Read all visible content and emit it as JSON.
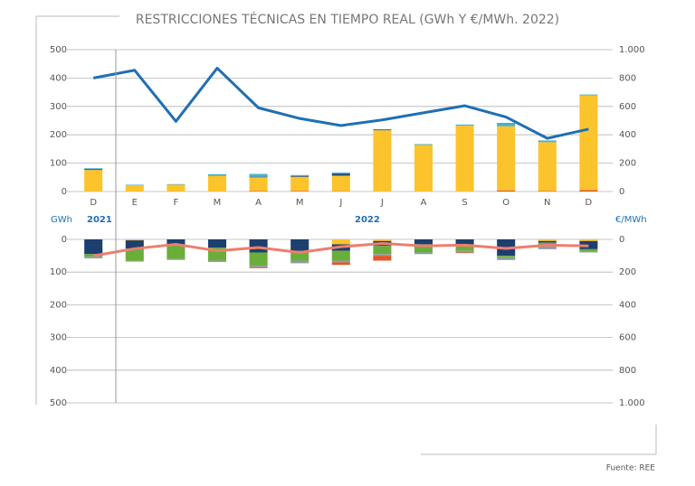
{
  "chart_data": [
    {
      "type": "bar",
      "title": "RESTRICCIONES TÉCNICAS EN TIEMPO REAL (GWh Y €/MWh. 2022)",
      "categories": [
        "D",
        "E",
        "F",
        "M",
        "A",
        "M",
        "J",
        "J",
        "A",
        "S",
        "O",
        "N",
        "D"
      ],
      "ylim": [
        0,
        500
      ],
      "yticks": [
        0,
        100,
        200,
        300,
        400,
        500
      ],
      "y2lim": [
        0,
        1000
      ],
      "y2ticks": [
        0,
        200,
        400,
        600,
        800,
        {
          "value": 1000,
          "label": "1.000"
        }
      ],
      "grid": true,
      "series": [
        {
          "color": "#e2572b",
          "values": [
            0,
            0,
            0,
            0,
            2,
            2,
            1,
            0,
            0,
            0,
            4,
            2,
            5
          ]
        },
        {
          "color": "#fcc42c",
          "values": [
            76,
            22,
            24,
            56,
            48,
            50,
            55,
            216,
            164,
            232,
            226,
            172,
            334
          ]
        },
        {
          "color": "#1d3f6e",
          "values": [
            3,
            0,
            0,
            1,
            2,
            3,
            7,
            2,
            0,
            0,
            0,
            0,
            0
          ]
        },
        {
          "color": "#4bb0c8",
          "values": [
            3,
            2,
            2,
            4,
            10,
            3,
            4,
            2,
            3,
            4,
            12,
            6,
            3
          ]
        },
        {
          "type": "line",
          "axis": "y2",
          "color": "#1f6fb5",
          "values": [
            800,
            855,
            495,
            870,
            590,
            515,
            465,
            505,
            555,
            605,
            525,
            375,
            440
          ]
        }
      ]
    },
    {
      "type": "bar",
      "inverted": true,
      "ylabel": "GWh",
      "y2label": "€/MWh",
      "annotations": [
        "2021",
        "2022"
      ],
      "ylim": [
        0,
        500
      ],
      "yticks": [
        0,
        100,
        200,
        300,
        400,
        500
      ],
      "y2lim": [
        0,
        1000
      ],
      "y2ticks": [
        0,
        200,
        400,
        600,
        800,
        {
          "value": 1000,
          "label": "1.000"
        }
      ],
      "grid": true,
      "series": [
        {
          "color": "#fcc42c",
          "values": [
            0,
            3,
            0,
            0,
            0,
            0,
            15,
            5,
            0,
            0,
            0,
            5,
            5
          ]
        },
        {
          "color": "#1d3f6e",
          "values": [
            45,
            25,
            15,
            25,
            40,
            35,
            20,
            15,
            15,
            15,
            50,
            5,
            25
          ]
        },
        {
          "color": "#6aae3a",
          "values": [
            8,
            38,
            45,
            40,
            40,
            30,
            30,
            25,
            25,
            20,
            5,
            10,
            8
          ]
        },
        {
          "color": "#8e9ca6",
          "values": [
            5,
            2,
            3,
            4,
            5,
            8,
            5,
            5,
            5,
            5,
            8,
            10,
            2
          ]
        },
        {
          "color": "#e2572b",
          "values": [
            0,
            0,
            0,
            0,
            3,
            0,
            8,
            15,
            0,
            2,
            0,
            0,
            0
          ]
        },
        {
          "type": "line",
          "axis": "y2",
          "color": "#ef7d6e",
          "values": [
            100,
            57,
            30,
            70,
            50,
            80,
            45,
            25,
            40,
            35,
            55,
            35,
            40
          ]
        }
      ]
    }
  ],
  "source": "Fuente: REE"
}
